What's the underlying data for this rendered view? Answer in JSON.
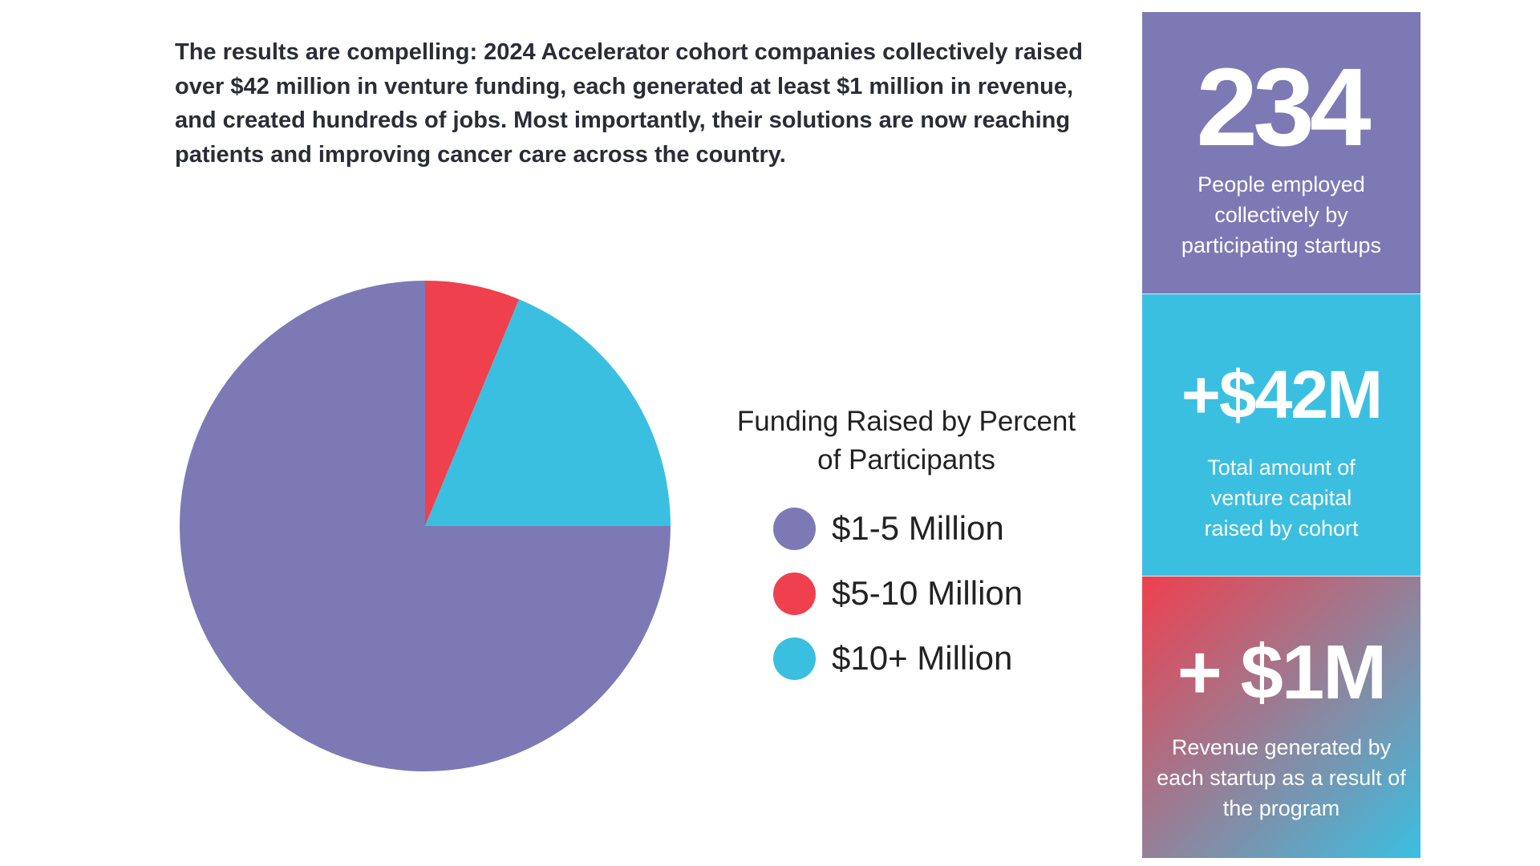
{
  "intro_text": "The results are compelling: 2024 Accelerator cohort companies collectively raised over $42 million in venture funding, each generated at least $1 million in revenue, and created hundreds of jobs. Most importantly, their solutions are now reaching patients and improving cancer care across the country.",
  "chart_data": {
    "type": "pie",
    "title": "Funding Raised by Percent of Participants",
    "categories": [
      "$1-5 Million",
      "$5-10 Million",
      "$10+ Million"
    ],
    "values": [
      75,
      6.25,
      18.75
    ],
    "colors": [
      "#7d79b5",
      "#ef404e",
      "#3bbfe1"
    ],
    "legend_position": "right",
    "start_angle_deg": 0,
    "direction": "clockwise",
    "slice_order": [
      1,
      2,
      0
    ]
  },
  "stats": [
    {
      "value": "234",
      "description": "People employed collectively by participating startups",
      "background": "#7d79b5"
    },
    {
      "value": "+$42M",
      "description": "Total amount of venture capital raised by cohort",
      "background": "#3bbfe1"
    },
    {
      "value": "+ $1M",
      "description": "Revenue generated by each startup as a result of the program",
      "gradient_start": "#ef404e",
      "gradient_end": "#3bbfe1"
    }
  ]
}
